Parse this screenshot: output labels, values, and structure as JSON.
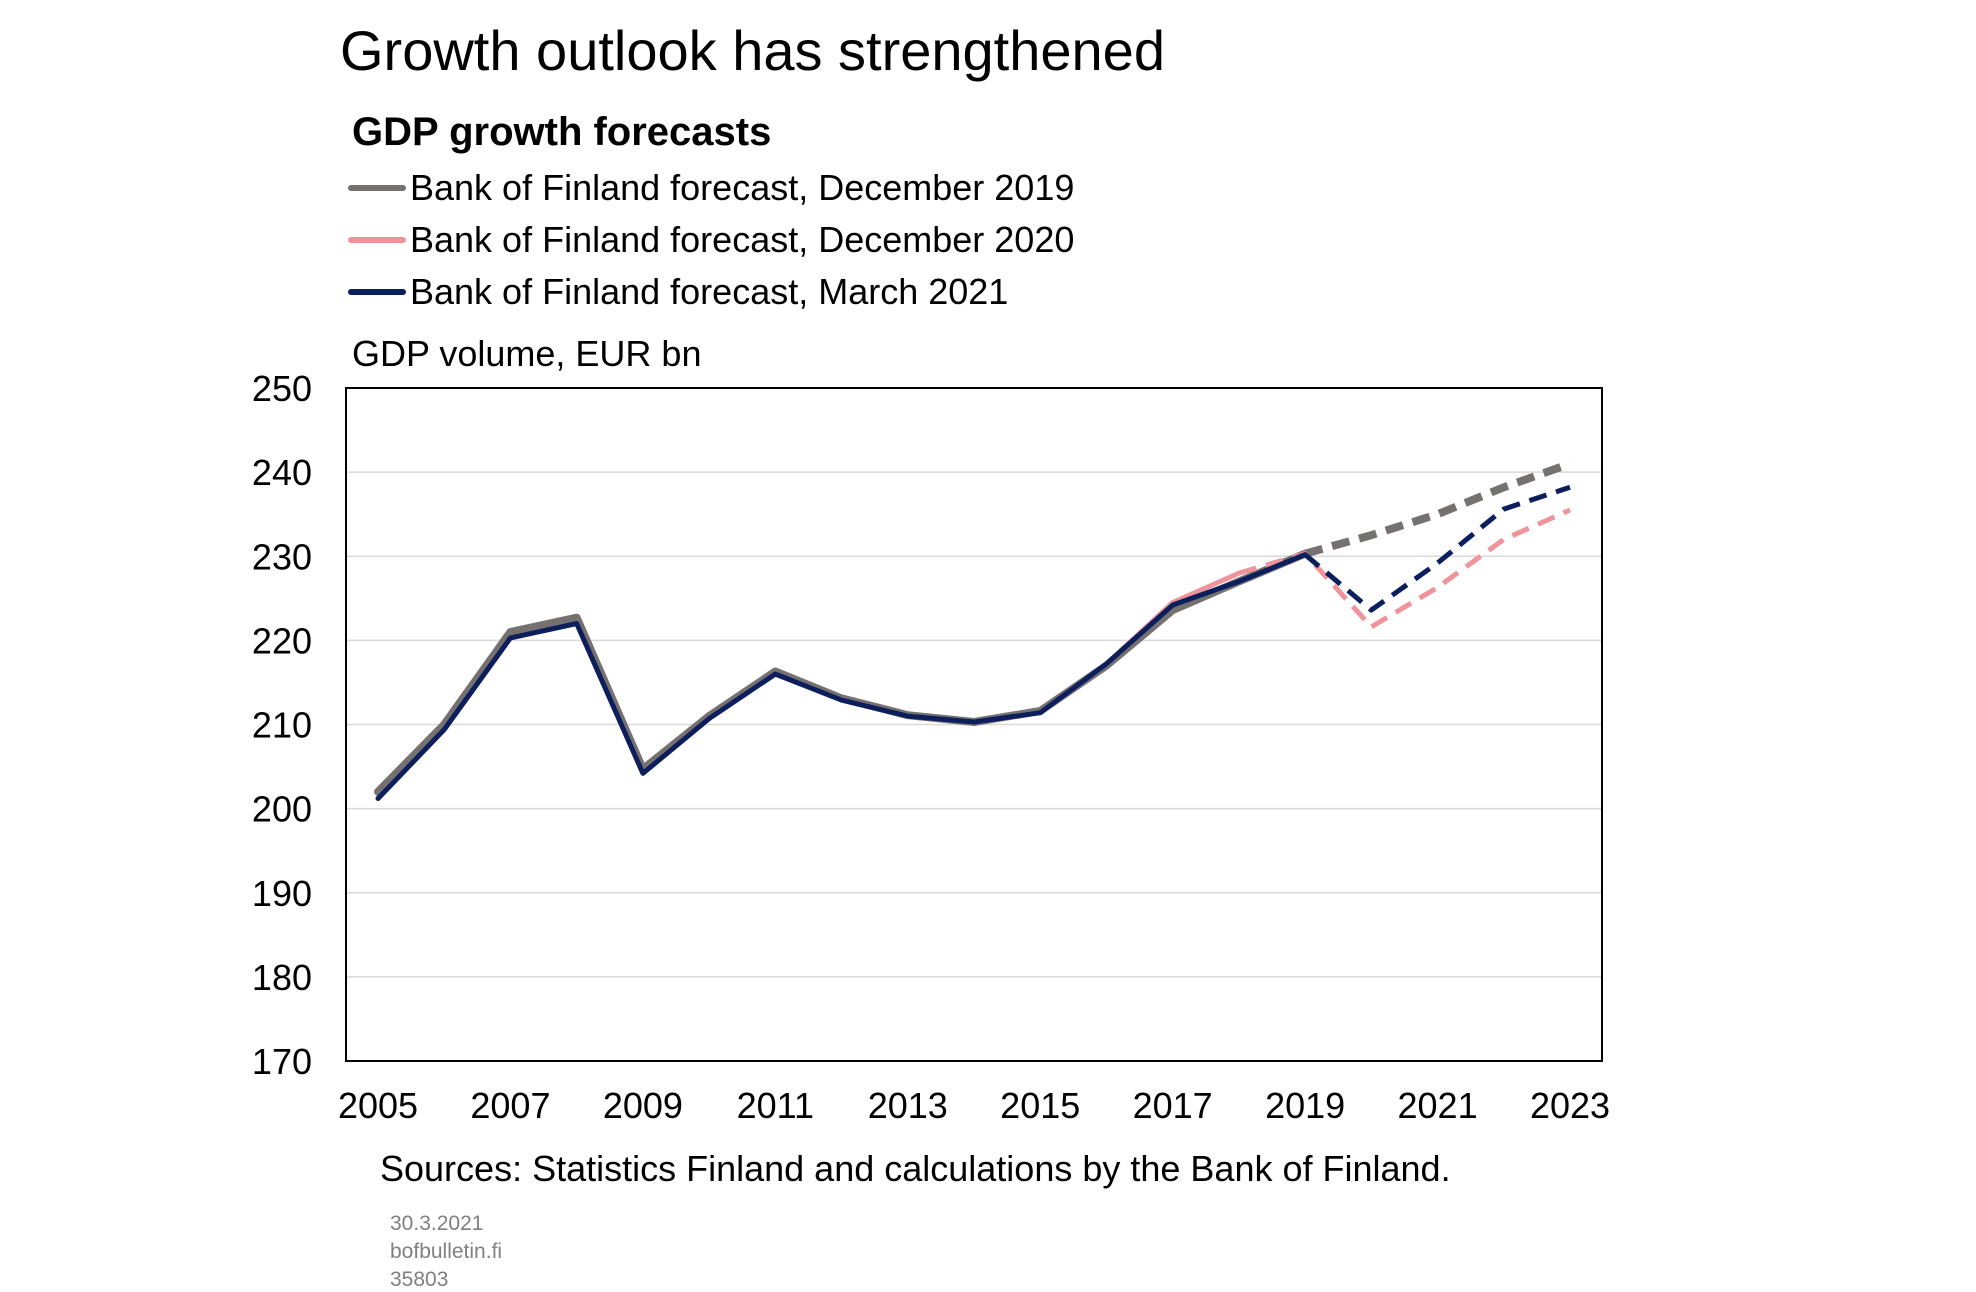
{
  "header": {
    "title": "Growth outlook has strengthened",
    "subtitle": "GDP growth forecasts",
    "unit_label": "GDP volume, EUR bn"
  },
  "footer": {
    "source": "Sources: Statistics Finland and calculations by the Bank of Finland.",
    "date": "30.3.2021",
    "site": "bofbulletin.fi",
    "code": "35803"
  },
  "chart_data": {
    "type": "line",
    "ylim": [
      170,
      250
    ],
    "yticks": [
      170,
      180,
      190,
      200,
      210,
      220,
      230,
      240,
      250
    ],
    "xlim": [
      2005,
      2023
    ],
    "xticks": [
      2005,
      2007,
      2009,
      2011,
      2013,
      2015,
      2017,
      2019,
      2021,
      2023
    ],
    "grid": "horizontal",
    "legend_position": "top-left",
    "x": [
      2005,
      2006,
      2007,
      2008,
      2009,
      2010,
      2011,
      2012,
      2013,
      2014,
      2015,
      2016,
      2017,
      2018,
      2019,
      2020,
      2021,
      2022,
      2023
    ],
    "series": [
      {
        "name": "Bank of Finland forecast, December 2019",
        "color": "#767171",
        "values": [
          202.0,
          210.0,
          221.0,
          222.7,
          204.7,
          211.0,
          216.3,
          213.1,
          211.1,
          210.3,
          211.6,
          217.0,
          223.6,
          227.0,
          230.3,
          232.5,
          235.0,
          238.2,
          241.0
        ],
        "forecast_from": 2019
      },
      {
        "name": "Bank of Finland forecast, December 2020",
        "color": "#f0939a",
        "values": [
          201.2,
          209.4,
          220.3,
          222.0,
          204.2,
          210.7,
          216.0,
          212.9,
          211.0,
          210.3,
          211.4,
          217.2,
          224.5,
          228.0,
          230.3,
          221.6,
          226.3,
          232.0,
          235.5
        ],
        "forecast_from": 2018
      },
      {
        "name": "Bank of Finland forecast, March 2021",
        "color": "#0a1f5c",
        "values": [
          201.2,
          209.4,
          220.3,
          222.0,
          204.2,
          210.7,
          216.0,
          212.9,
          211.0,
          210.3,
          211.4,
          217.2,
          224.2,
          227.0,
          230.2,
          223.6,
          229.2,
          235.6,
          238.2
        ],
        "forecast_from": 2019
      }
    ]
  }
}
